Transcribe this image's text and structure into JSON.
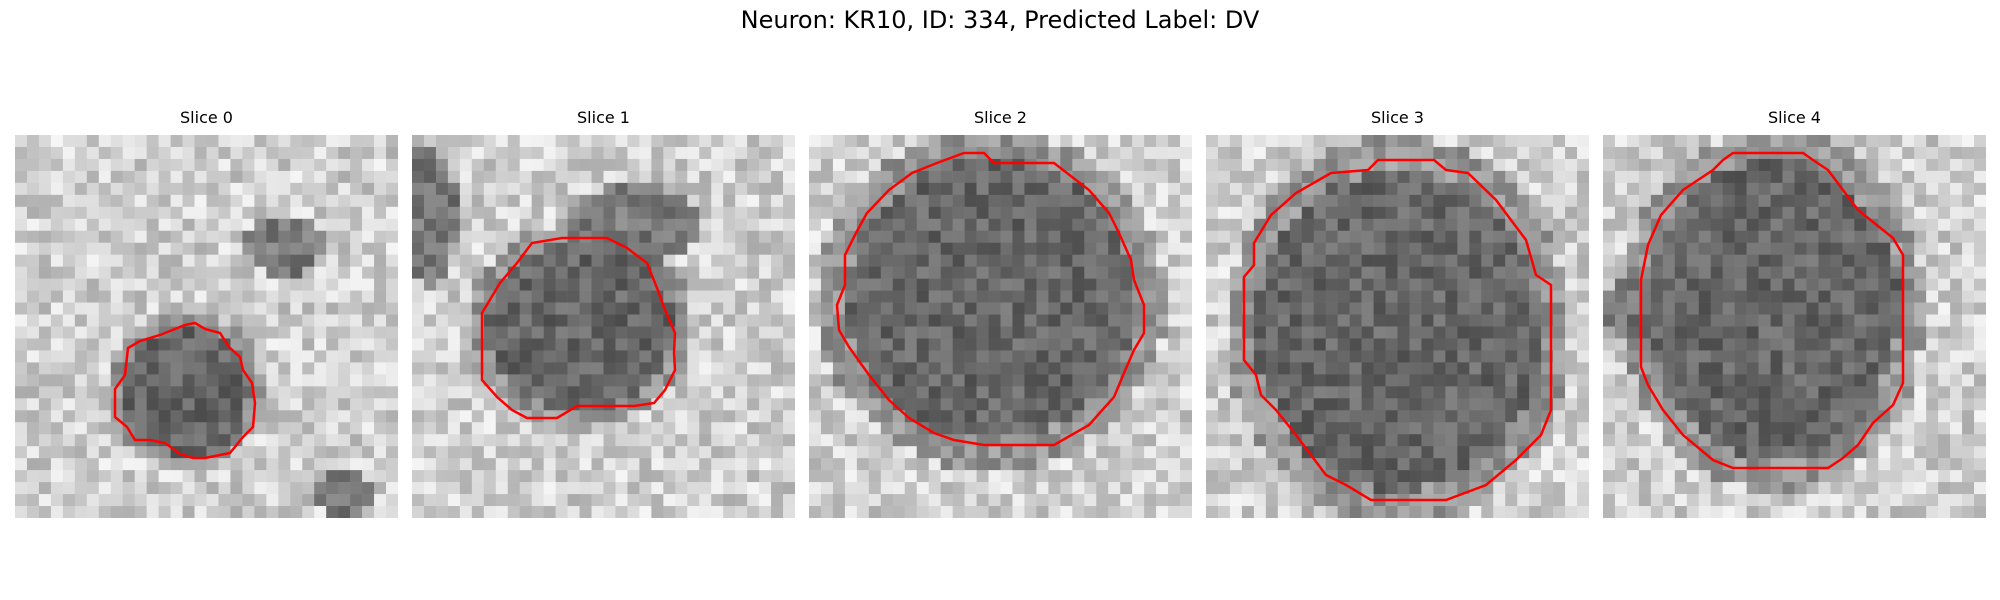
{
  "figure": {
    "title": "Neuron: KR10, ID: 334, Predicted Label: DV"
  },
  "colors": {
    "contour": "#ff0000",
    "colormap": "gray"
  },
  "panels": [
    {
      "title": "Slice 0",
      "contour_color": "#ff0000"
    },
    {
      "title": "Slice 1",
      "contour_color": "#ff0000"
    },
    {
      "title": "Slice 2",
      "contour_color": "#ff0000"
    },
    {
      "title": "Slice 3",
      "contour_color": "#ff0000"
    },
    {
      "title": "Slice 4",
      "contour_color": "#ff0000"
    }
  ]
}
